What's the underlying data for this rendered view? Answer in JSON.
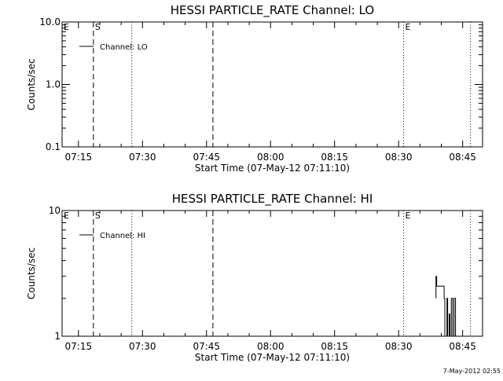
{
  "footer": {
    "timestamp": "7-May-2012 02:55"
  },
  "chart_data": [
    {
      "type": "line",
      "title": "HESSI PARTICLE_RATE Channel: LO",
      "xlabel": "Start Time (07-May-12 07:11:10)",
      "ylabel": "Counts/sec",
      "xscale": "time",
      "yscale": "log",
      "xlim": [
        "07:11:10",
        "08:49:40"
      ],
      "ylim": [
        0.1,
        10.0
      ],
      "x_tick_labels": [
        "07:15",
        "07:30",
        "07:45",
        "08:00",
        "08:15",
        "08:30",
        "08:45"
      ],
      "x_tick_minutes": [
        15,
        30,
        45,
        60,
        75,
        90,
        105
      ],
      "y_tick_labels": [
        "0.1",
        "1.0",
        "10.0"
      ],
      "y_tick_values": [
        0.1,
        1.0,
        10.0
      ],
      "legend": {
        "label": "Channel: LO",
        "position": "top-left"
      },
      "vertical_markers": [
        {
          "time": "07:18:30",
          "style": "dashed",
          "label": "S"
        },
        {
          "time": "07:27:30",
          "style": "dotted",
          "label": ""
        },
        {
          "time": "07:46:30",
          "style": "dashed",
          "label": ""
        },
        {
          "time": "08:31:10",
          "style": "dotted",
          "label": "E"
        },
        {
          "time": "08:46:50",
          "style": "dotted",
          "label": ""
        }
      ],
      "corner_label": "E",
      "series": []
    },
    {
      "type": "line",
      "title": "HESSI PARTICLE_RATE Channel: HI",
      "xlabel": "Start Time (07-May-12 07:11:10)",
      "ylabel": "Counts/sec",
      "xscale": "time",
      "yscale": "log",
      "xlim": [
        "07:11:10",
        "08:49:40"
      ],
      "ylim": [
        1,
        10
      ],
      "x_tick_labels": [
        "07:15",
        "07:30",
        "07:45",
        "08:00",
        "08:15",
        "08:30",
        "08:45"
      ],
      "x_tick_minutes": [
        15,
        30,
        45,
        60,
        75,
        90,
        105
      ],
      "y_tick_labels": [
        "1",
        "10"
      ],
      "y_tick_values": [
        1,
        10
      ],
      "legend": {
        "label": "Channel: HI",
        "position": "top-left"
      },
      "vertical_markers": [
        {
          "time": "07:18:30",
          "style": "dashed",
          "label": "S"
        },
        {
          "time": "07:27:30",
          "style": "dotted",
          "label": ""
        },
        {
          "time": "07:46:30",
          "style": "dashed",
          "label": ""
        },
        {
          "time": "08:31:10",
          "style": "dotted",
          "label": "E"
        },
        {
          "time": "08:46:50",
          "style": "dotted",
          "label": ""
        }
      ],
      "corner_label": "E",
      "series": [
        {
          "times": [
            "08:38:45",
            "08:38:45",
            "08:38:55",
            "08:38:55",
            "08:40:40",
            "08:40:40",
            "08:40:50",
            "08:40:50",
            "08:41:20",
            "08:41:20",
            "08:41:30",
            "08:41:30",
            "08:41:50",
            "08:41:50",
            "08:42:00",
            "08:42:00",
            "08:42:20",
            "08:42:20",
            "08:42:40",
            "08:42:40",
            "08:43:00",
            "08:43:00",
            "08:43:20",
            "08:43:20"
          ],
          "values": [
            2.0,
            3.0,
            3.0,
            2.5,
            2.5,
            2.0,
            2.0,
            1.0,
            1.0,
            2.0,
            2.0,
            1.0,
            1.0,
            1.5,
            1.5,
            1.0,
            1.0,
            2.0,
            2.0,
            1.0,
            1.0,
            2.0,
            2.0,
            1.0
          ]
        }
      ]
    }
  ]
}
